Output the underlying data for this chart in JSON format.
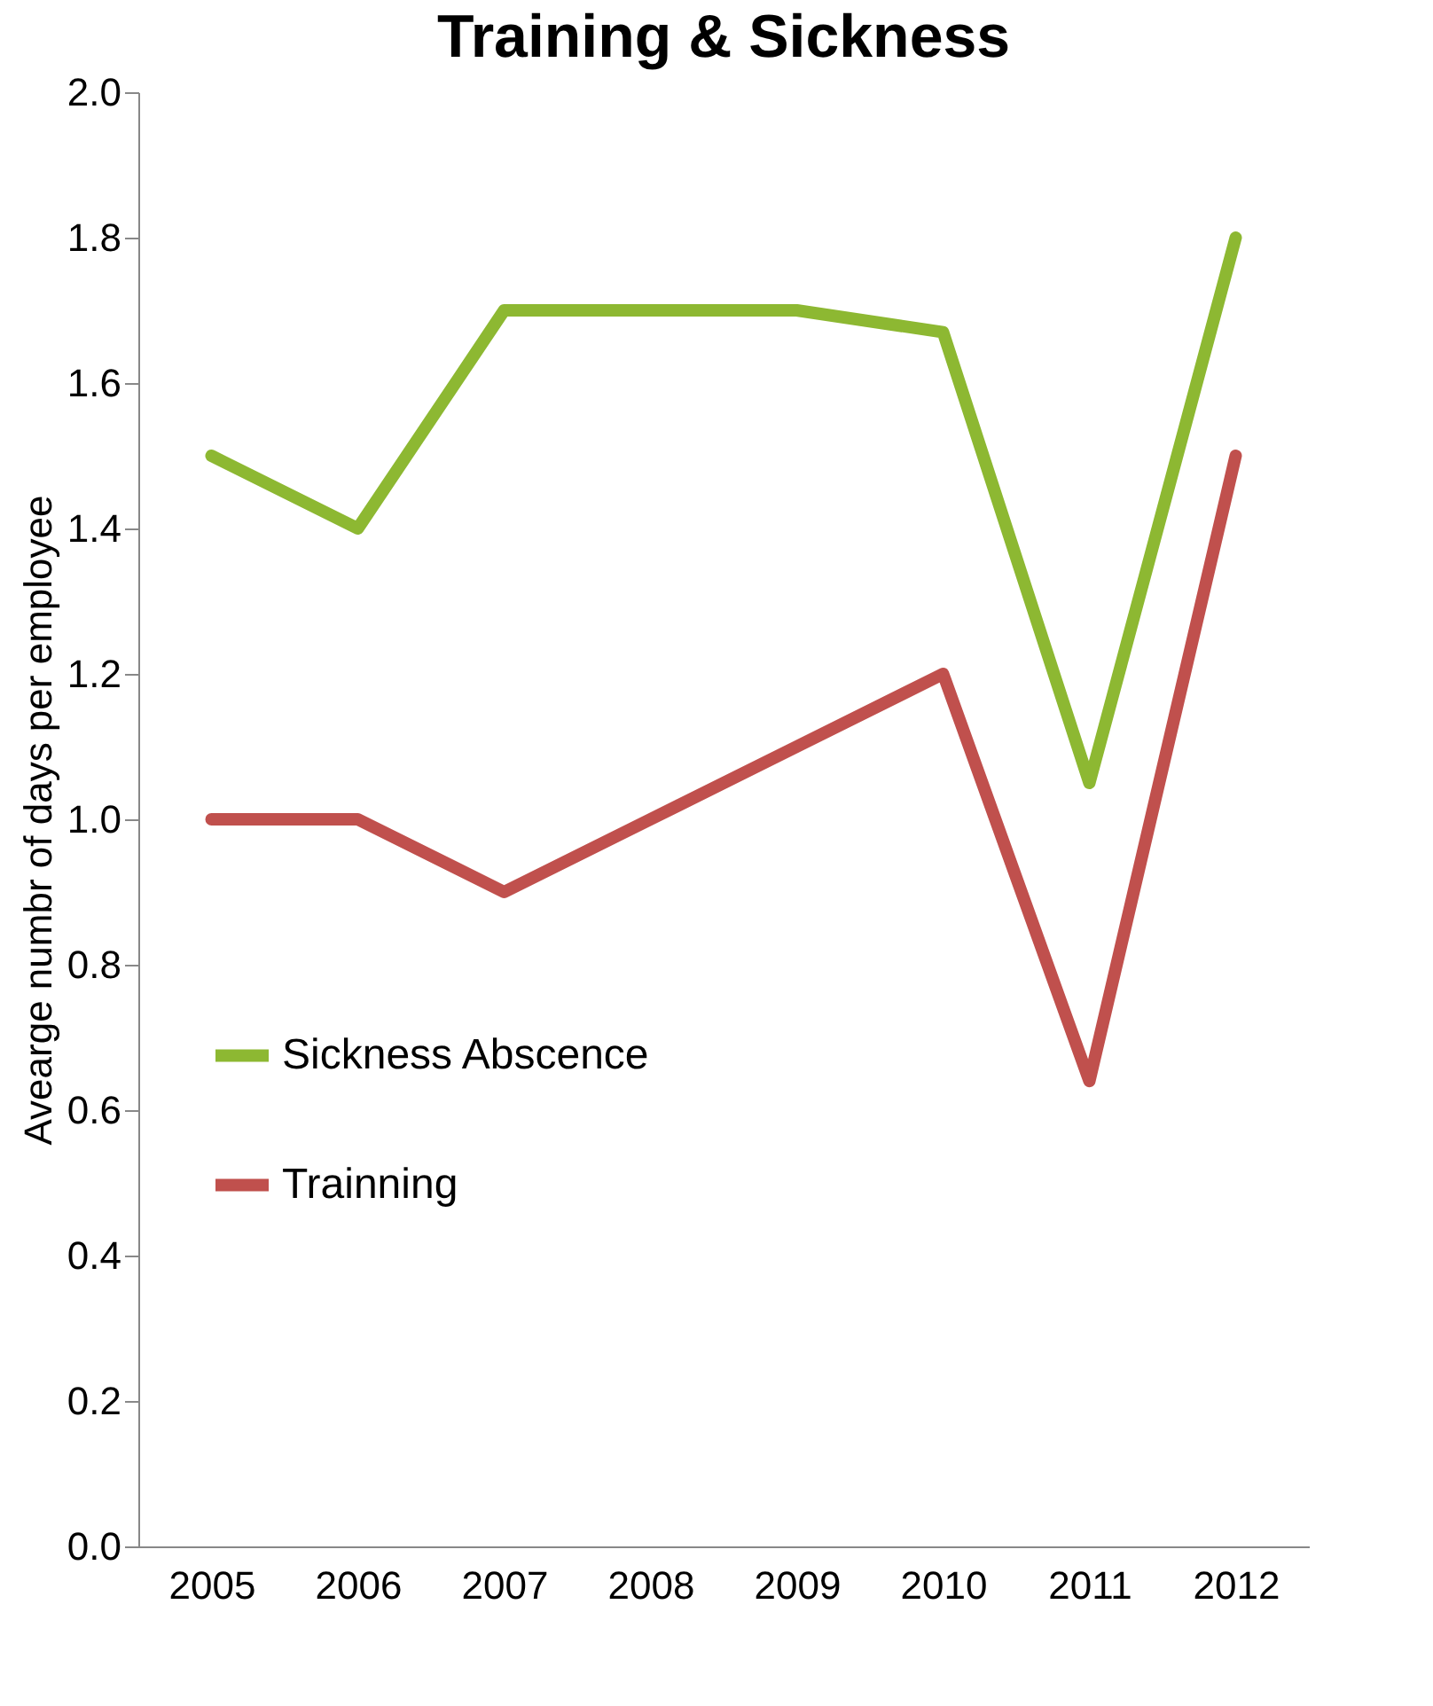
{
  "chart_data": {
    "type": "line",
    "title": "Training & Sickness",
    "ylabel": "Avearge numbr of days per employee",
    "categories": [
      "2005",
      "2006",
      "2007",
      "2008",
      "2009",
      "2010",
      "2011",
      "2012"
    ],
    "series": [
      {
        "name": "Sickness Abscence",
        "color": "#8db832",
        "values": [
          1.5,
          1.4,
          1.7,
          1.7,
          1.7,
          1.67,
          1.05,
          1.8
        ]
      },
      {
        "name": "Trainning",
        "color": "#c0504d",
        "values": [
          1.0,
          1.0,
          0.9,
          1.0,
          1.1,
          1.2,
          0.64,
          1.5
        ]
      }
    ],
    "ylim": [
      0,
      2
    ],
    "yticks": [
      {
        "value": 0,
        "label": "0.0"
      },
      {
        "value": 0.2,
        "label": "0.2"
      },
      {
        "value": 0.4,
        "label": "0.4"
      },
      {
        "value": 0.6,
        "label": "0.6"
      },
      {
        "value": 0.8,
        "label": "0.8"
      },
      {
        "value": 1,
        "label": "1.0"
      },
      {
        "value": 1.2,
        "label": "1.2"
      },
      {
        "value": 1.4,
        "label": "1.4"
      },
      {
        "value": 1.6,
        "label": "1.6"
      },
      {
        "value": 1.8,
        "label": "1.8"
      },
      {
        "value": 2,
        "label": "2.0"
      }
    ],
    "grid": false,
    "legend": "left",
    "line_style": "solid"
  }
}
